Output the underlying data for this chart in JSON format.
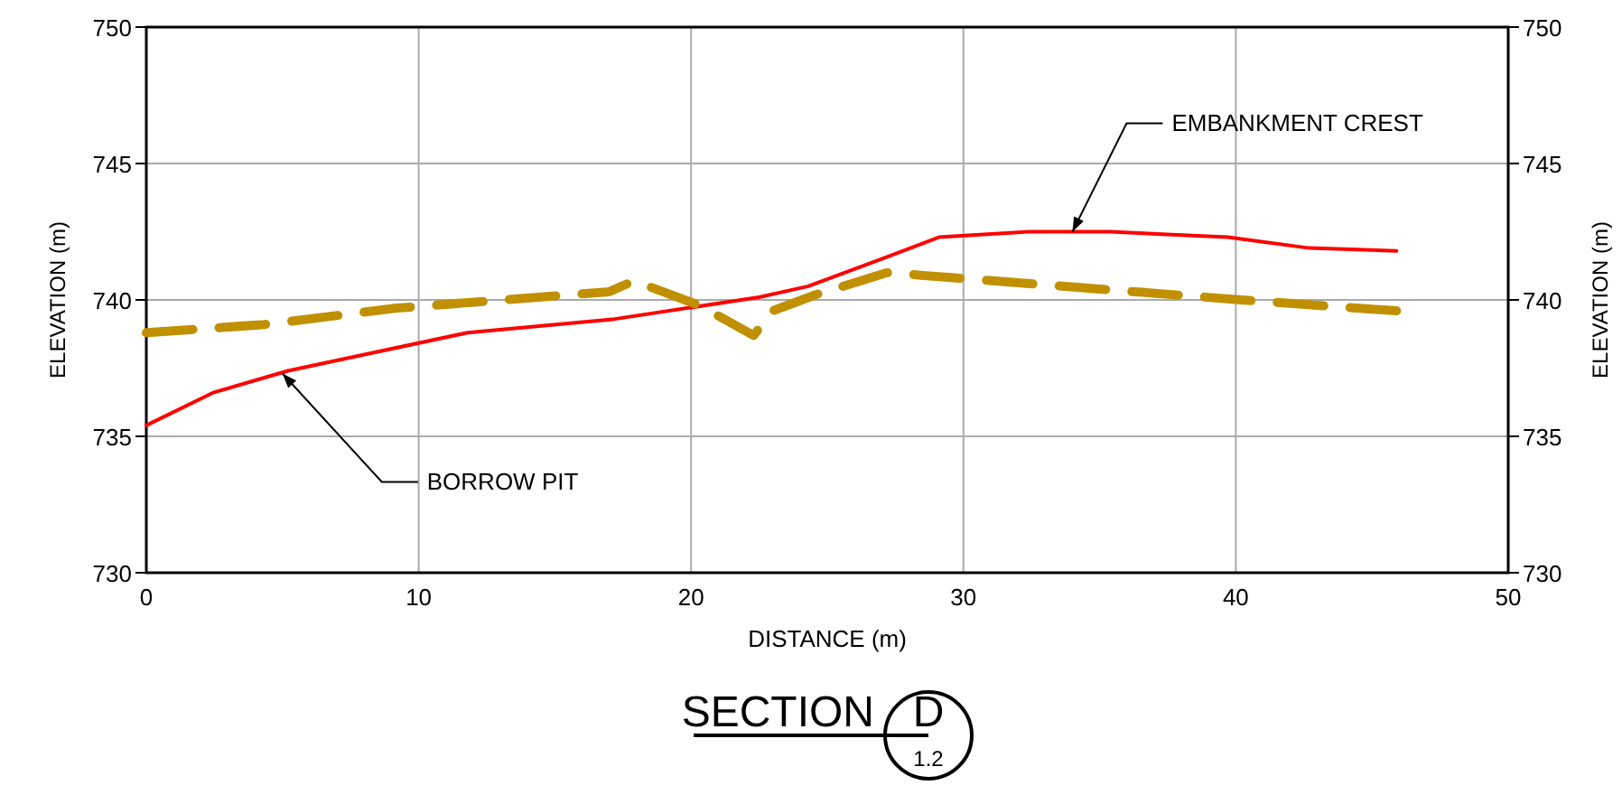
{
  "chart_data": {
    "type": "line",
    "title": "SECTION",
    "subtitle": "D",
    "xlabel": "DISTANCE (m)",
    "ylabel": "ELEVATION (m)",
    "y2label": "ELEVATION (m)",
    "xlim": [
      0,
      50
    ],
    "xticks": [
      0,
      10,
      20,
      30,
      40,
      50
    ],
    "ylim": [
      730,
      750
    ],
    "yticks": [
      730,
      735,
      740,
      745,
      750
    ],
    "y2lim": [
      730,
      750
    ],
    "y2ticks": [
      730,
      735,
      740,
      745,
      750
    ],
    "grid": true,
    "series": [
      {
        "color": "#ff0000",
        "line_style": "solid",
        "x": [
          0,
          2.45,
          5.2,
          11.8,
          17.2,
          22.5,
          24.3,
          27.0,
          29.1,
          32.4,
          35.4,
          39.7,
          42.7,
          45.9
        ],
        "values": [
          735.4,
          736.6,
          737.4,
          738.8,
          739.3,
          740.1,
          740.5,
          741.5,
          742.3,
          742.5,
          742.5,
          742.3,
          741.9,
          741.8
        ]
      },
      {
        "color": "#c09000",
        "line_style": "dashed",
        "x": [
          0,
          4.35,
          9.2,
          17.0,
          17.9,
          20.3,
          22.3,
          23.0,
          24.6,
          27.2,
          40.2,
          45.9
        ],
        "values": [
          738.8,
          739.1,
          739.7,
          740.3,
          740.7,
          739.8,
          738.7,
          739.6,
          740.2,
          741.0,
          740.0,
          739.6
        ]
      }
    ],
    "annotations": [
      {
        "text": "BORROW PIT",
        "x": 5.0,
        "y": 737.3
      },
      {
        "text": "EMBANKMENT CREST",
        "x": 34.0,
        "y": 742.5
      },
      "1.2"
    ]
  }
}
